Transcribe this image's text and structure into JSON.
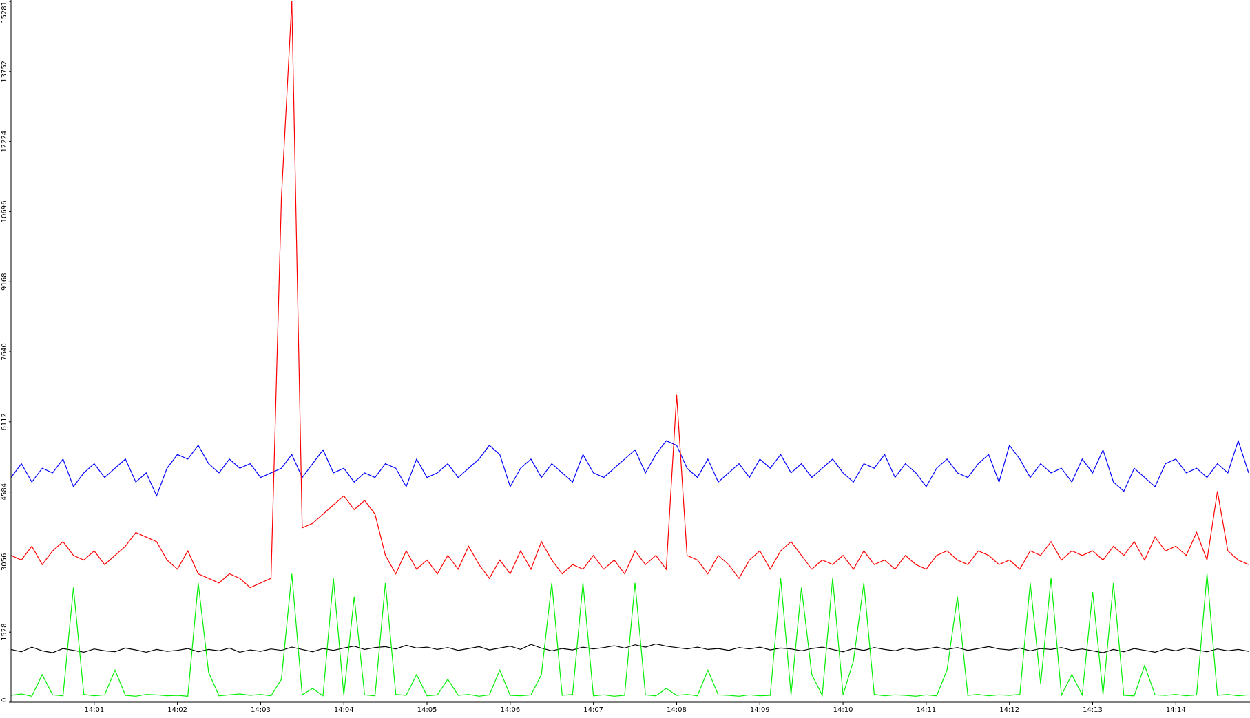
{
  "chart_data": {
    "type": "line",
    "categories": [
      null,
      null,
      null,
      null,
      null,
      null,
      null,
      null,
      "14:01",
      null,
      null,
      null,
      null,
      null,
      null,
      null,
      "14:02",
      null,
      null,
      null,
      null,
      null,
      null,
      null,
      "14:03",
      null,
      null,
      null,
      null,
      null,
      null,
      null,
      "14:04",
      null,
      null,
      null,
      null,
      null,
      null,
      null,
      "14:05",
      null,
      null,
      null,
      null,
      null,
      null,
      null,
      "14:06",
      null,
      null,
      null,
      null,
      null,
      null,
      null,
      "14:07",
      null,
      null,
      null,
      null,
      null,
      null,
      null,
      "14:08",
      null,
      null,
      null,
      null,
      null,
      null,
      null,
      "14:09",
      null,
      null,
      null,
      null,
      null,
      null,
      null,
      "14:10",
      null,
      null,
      null,
      null,
      null,
      null,
      null,
      "14:11",
      null,
      null,
      null,
      null,
      null,
      null,
      null,
      "14:12",
      null,
      null,
      null,
      null,
      null,
      null,
      null,
      "14:13",
      null,
      null,
      null,
      null,
      null,
      null,
      null,
      "14:14",
      null,
      null,
      null,
      null,
      null,
      null,
      null
    ],
    "series": [
      {
        "color": "#0000ff",
        "values": [
          4900,
          5200,
          4800,
          5100,
          5000,
          5300,
          4700,
          5000,
          5200,
          4900,
          5100,
          5300,
          4800,
          5000,
          4500,
          5100,
          5400,
          5300,
          5600,
          5200,
          5000,
          5300,
          5100,
          5200,
          4900,
          5000,
          5100,
          5400,
          4900,
          5200,
          5500,
          5000,
          5100,
          4800,
          5000,
          4900,
          5200,
          5100,
          4700,
          5300,
          4900,
          5000,
          5200,
          4900,
          5100,
          5300,
          5600,
          5400,
          4700,
          5100,
          5300,
          4900,
          5200,
          5000,
          4800,
          5400,
          5000,
          4900,
          5100,
          5300,
          5500,
          5000,
          5400,
          5700,
          5600,
          5100,
          4900,
          5300,
          4800,
          5000,
          5200,
          4900,
          5300,
          5100,
          5400,
          5000,
          5200,
          4900,
          5100,
          5300,
          5000,
          4800,
          5200,
          5100,
          5400,
          4900,
          5200,
          5000,
          4700,
          5100,
          5300,
          5000,
          4900,
          5200,
          5400,
          4800,
          5600,
          5300,
          4900,
          5200,
          5000,
          5100,
          4800,
          5300,
          5000,
          5500,
          4800,
          4600,
          5100,
          4900,
          4700,
          5200,
          5300,
          5000,
          5100,
          4900,
          5200,
          5000,
          5700,
          5000
        ]
      },
      {
        "color": "#ff0000",
        "values": [
          3200,
          3100,
          3400,
          3000,
          3300,
          3500,
          3200,
          3100,
          3300,
          3000,
          3200,
          3400,
          3700,
          3600,
          3500,
          3100,
          2900,
          3300,
          2800,
          2700,
          2600,
          2800,
          2700,
          2500,
          2600,
          2700,
          11000,
          15281,
          3800,
          3900,
          4100,
          4300,
          4500,
          4200,
          4400,
          4100,
          3200,
          2800,
          3300,
          2900,
          3100,
          2800,
          3200,
          2900,
          3400,
          3000,
          2700,
          3100,
          2800,
          3300,
          2900,
          3500,
          3100,
          2800,
          3000,
          2900,
          3200,
          2900,
          3100,
          2800,
          3300,
          3000,
          3200,
          2900,
          6700,
          3200,
          3100,
          2800,
          3200,
          3000,
          2700,
          3100,
          3300,
          2900,
          3300,
          3500,
          3200,
          2900,
          3100,
          3000,
          3200,
          2900,
          3300,
          3000,
          3100,
          2900,
          3200,
          3000,
          2900,
          3200,
          3300,
          3100,
          3000,
          3300,
          3200,
          3000,
          3100,
          2900,
          3300,
          3200,
          3500,
          3100,
          3300,
          3200,
          3300,
          3100,
          3400,
          3200,
          3500,
          3100,
          3600,
          3300,
          3400,
          3200,
          3700,
          3100,
          4600,
          3300,
          3100,
          3000
        ]
      },
      {
        "color": "#000000",
        "values": [
          1150,
          1100,
          1200,
          1120,
          1080,
          1170,
          1130,
          1090,
          1160,
          1120,
          1100,
          1180,
          1140,
          1090,
          1150,
          1110,
          1130,
          1170,
          1100,
          1150,
          1120,
          1180,
          1090,
          1140,
          1110,
          1160,
          1130,
          1200,
          1150,
          1100,
          1170,
          1130,
          1180,
          1220,
          1150,
          1190,
          1210,
          1160,
          1240,
          1180,
          1200,
          1150,
          1190,
          1130,
          1170,
          1210,
          1140,
          1180,
          1220,
          1150,
          1260,
          1180,
          1120,
          1170,
          1140,
          1200,
          1160,
          1190,
          1230,
          1180,
          1250,
          1200,
          1270,
          1220,
          1190,
          1160,
          1200,
          1150,
          1170,
          1130,
          1190,
          1160,
          1200,
          1140,
          1180,
          1160,
          1120,
          1170,
          1200,
          1150,
          1100,
          1170,
          1130,
          1190,
          1150,
          1120,
          1180,
          1140,
          1160,
          1200,
          1150,
          1190,
          1130,
          1170,
          1210,
          1160,
          1140,
          1180,
          1120,
          1170,
          1150,
          1190,
          1130,
          1160,
          1120,
          1080,
          1150,
          1100,
          1170,
          1130,
          1090,
          1160,
          1120,
          1180,
          1140,
          1100,
          1160,
          1120,
          1150,
          1110
        ]
      },
      {
        "color": "#00ee00",
        "values": [
          150,
          180,
          130,
          600,
          160,
          140,
          2500,
          170,
          140,
          160,
          700,
          150,
          130,
          170,
          160,
          140,
          150,
          130,
          2600,
          650,
          140,
          160,
          180,
          150,
          170,
          140,
          500,
          2800,
          160,
          300,
          140,
          2700,
          150,
          2300,
          160,
          140,
          2600,
          170,
          150,
          600,
          140,
          160,
          500,
          150,
          170,
          130,
          160,
          700,
          150,
          140,
          160,
          600,
          2600,
          150,
          170,
          2600,
          140,
          160,
          130,
          150,
          2600,
          160,
          140,
          300,
          150,
          170,
          140,
          700,
          160,
          150,
          130,
          160,
          140,
          150,
          2700,
          160,
          2500,
          600,
          150,
          2700,
          160,
          900,
          2600,
          170,
          140,
          160,
          150,
          130,
          160,
          140,
          700,
          2300,
          150,
          170,
          140,
          160,
          150,
          170,
          2600,
          400,
          2700,
          150,
          600,
          160,
          2400,
          170,
          2600,
          150,
          140,
          800,
          160,
          150,
          170,
          140,
          160,
          2800,
          150,
          170,
          140,
          160
        ]
      }
    ],
    "ylim": [
      0,
      15281
    ],
    "yticks": [
      0,
      1528,
      3056,
      4584,
      6112,
      7640,
      9168,
      10696,
      12224,
      13752,
      15281
    ]
  }
}
